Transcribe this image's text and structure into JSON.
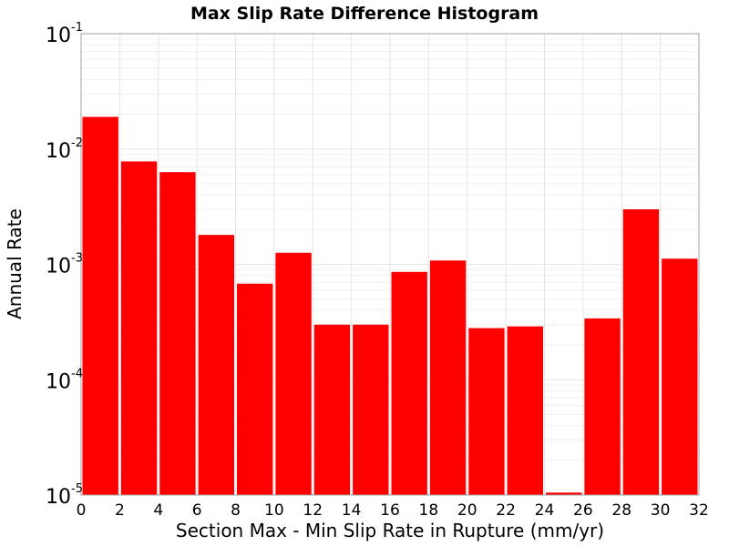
{
  "chart_data": {
    "type": "bar",
    "title": "Max Slip Rate Difference Histogram",
    "xlabel": "Section Max - Min Slip Rate in Rupture (mm/yr)",
    "ylabel": "Annual Rate",
    "xlim": [
      0,
      32
    ],
    "ylim": [
      1e-05,
      0.1
    ],
    "yscale": "log",
    "grid": true,
    "bar_color": "#ff0000",
    "x_ticks": [
      "0",
      "2",
      "4",
      "6",
      "8",
      "10",
      "12",
      "14",
      "16",
      "18",
      "20",
      "22",
      "24",
      "26",
      "28",
      "30",
      "32"
    ],
    "y_ticks": [
      {
        "base": "10",
        "exp": "-5"
      },
      {
        "base": "10",
        "exp": "-4"
      },
      {
        "base": "10",
        "exp": "-3"
      },
      {
        "base": "10",
        "exp": "-2"
      },
      {
        "base": "10",
        "exp": "-1"
      }
    ],
    "bin_width": 2,
    "bins": [
      {
        "x": 1,
        "value": 0.019
      },
      {
        "x": 3,
        "value": 0.0078
      },
      {
        "x": 5,
        "value": 0.0063
      },
      {
        "x": 7,
        "value": 0.0018
      },
      {
        "x": 9,
        "value": 0.00068
      },
      {
        "x": 11,
        "value": 0.00126
      },
      {
        "x": 13,
        "value": 0.0003
      },
      {
        "x": 15,
        "value": 0.0003
      },
      {
        "x": 17,
        "value": 0.00086
      },
      {
        "x": 19,
        "value": 0.00108
      },
      {
        "x": 21,
        "value": 0.00028
      },
      {
        "x": 23,
        "value": 0.00029
      },
      {
        "x": 25,
        "value": 1.05e-05
      },
      {
        "x": 27,
        "value": 0.00034
      },
      {
        "x": 29,
        "value": 0.003
      },
      {
        "x": 31,
        "value": 0.00112
      }
    ]
  }
}
